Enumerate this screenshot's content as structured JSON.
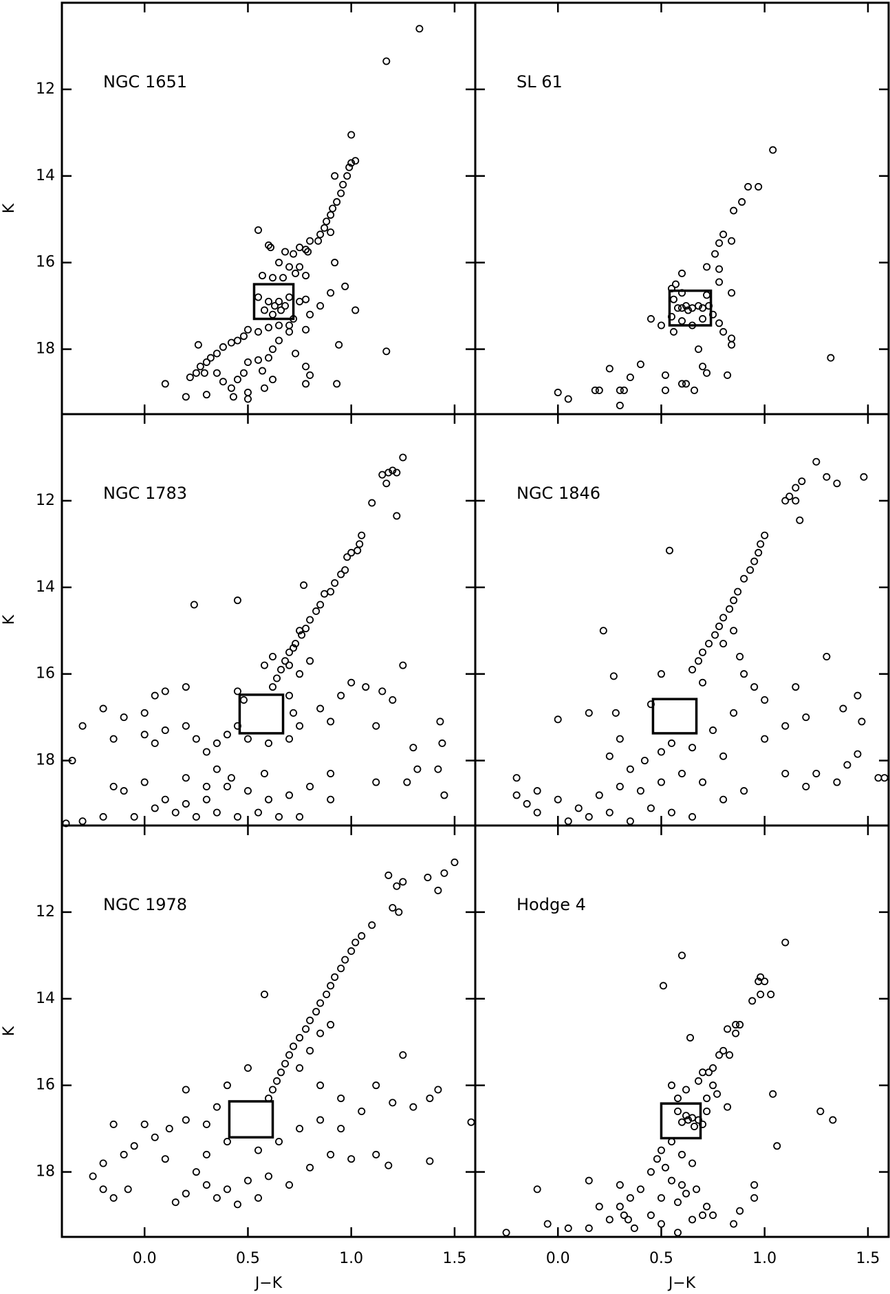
{
  "chart_data": [
    {
      "type": "scatter",
      "title": "NGC 1651",
      "marker_color": "#000000",
      "x": [
        1.33,
        1.17,
        1.0,
        1.02,
        1.0,
        0.99,
        0.98,
        0.92,
        0.96,
        0.95,
        0.93,
        0.91,
        0.9,
        0.88,
        0.87,
        0.9,
        0.85,
        0.84,
        0.8,
        0.78,
        0.79,
        0.75,
        0.72,
        0.68,
        0.55,
        0.6,
        0.61,
        0.65,
        0.7,
        0.75,
        0.78,
        0.73,
        0.67,
        0.62,
        0.57,
        0.92,
        0.9,
        0.97,
        1.02,
        0.55,
        0.6,
        0.63,
        0.65,
        0.68,
        0.7,
        0.66,
        0.62,
        0.58,
        0.72,
        0.75,
        0.78,
        0.8,
        0.78,
        0.7,
        0.65,
        0.6,
        0.55,
        0.5,
        0.48,
        0.45,
        0.42,
        0.38,
        0.35,
        0.32,
        0.3,
        0.27,
        0.25,
        0.22,
        0.26,
        0.29,
        0.35,
        0.38,
        0.42,
        0.45,
        0.48,
        0.5,
        0.55,
        0.57,
        0.6,
        0.62,
        0.65,
        0.7,
        0.73,
        0.78,
        0.8,
        0.78,
        0.62,
        0.58,
        0.5,
        0.5,
        0.43,
        0.3,
        0.2,
        0.1,
        0.93,
        0.94,
        1.17,
        0.85
      ],
      "values": [
        10.6,
        11.35,
        13.05,
        13.65,
        13.7,
        13.8,
        14.0,
        14.0,
        14.2,
        14.4,
        14.6,
        14.75,
        14.9,
        15.05,
        15.2,
        15.3,
        15.35,
        15.5,
        15.5,
        15.7,
        15.75,
        15.65,
        15.8,
        15.75,
        15.25,
        15.6,
        15.65,
        16.0,
        16.1,
        16.1,
        16.3,
        16.25,
        16.35,
        16.35,
        16.3,
        16.0,
        16.7,
        16.55,
        17.1,
        16.8,
        16.9,
        17.0,
        16.9,
        17.0,
        16.8,
        17.1,
        17.2,
        17.1,
        17.3,
        16.9,
        16.85,
        17.2,
        17.55,
        17.45,
        17.45,
        17.5,
        17.6,
        17.55,
        17.7,
        17.8,
        17.85,
        17.95,
        18.1,
        18.2,
        18.3,
        18.4,
        18.55,
        18.65,
        17.9,
        18.55,
        18.55,
        18.75,
        18.9,
        18.7,
        18.55,
        18.3,
        18.25,
        18.5,
        18.2,
        18.0,
        17.8,
        17.6,
        18.1,
        18.4,
        18.6,
        18.8,
        18.7,
        18.9,
        19.0,
        19.15,
        19.1,
        19.05,
        19.1,
        18.8,
        18.8,
        17.9,
        18.05,
        17.0
      ],
      "box": {
        "x": [
          0.53,
          0.72
        ],
        "y": [
          16.5,
          17.3
        ]
      },
      "xlim": [
        -0.4,
        1.6
      ],
      "ylim": [
        19.5,
        10.0
      ],
      "xticks": [
        0,
        0.5,
        1,
        1.5
      ],
      "xtick_labels": false,
      "yticks": [
        12,
        14,
        16,
        18
      ],
      "ytick_labels": true,
      "ylabel": "K"
    },
    {
      "type": "scatter",
      "title": "SL 61",
      "marker_color": "#000000",
      "x": [
        1.04,
        0.97,
        0.92,
        0.89,
        0.85,
        0.84,
        0.8,
        0.78,
        0.76,
        0.72,
        0.78,
        0.78,
        0.6,
        0.57,
        0.55,
        0.6,
        0.84,
        0.72,
        0.56,
        0.6,
        0.62,
        0.65,
        0.68,
        0.7,
        0.73,
        0.63,
        0.58,
        0.75,
        0.55,
        0.6,
        0.65,
        0.7,
        0.78,
        0.8,
        0.84,
        0.84,
        0.56,
        0.45,
        0.5,
        0.68,
        0.7,
        0.72,
        0.82,
        0.62,
        0.6,
        0.66,
        0.52,
        0.52,
        0.4,
        0.35,
        0.25,
        0.32,
        0.3,
        0.3,
        0.2,
        0.18,
        0.0,
        0.05,
        1.32
      ],
      "values": [
        13.4,
        14.25,
        14.25,
        14.6,
        14.8,
        15.5,
        15.35,
        15.55,
        15.8,
        16.1,
        16.15,
        16.45,
        16.25,
        16.5,
        16.6,
        16.7,
        16.7,
        16.75,
        16.85,
        17.05,
        17.0,
        17.05,
        17.0,
        17.05,
        17.0,
        17.1,
        17.05,
        17.2,
        17.25,
        17.35,
        17.45,
        17.3,
        17.4,
        17.6,
        17.75,
        17.9,
        17.6,
        17.3,
        17.45,
        18.0,
        18.4,
        18.55,
        18.6,
        18.8,
        18.8,
        18.95,
        18.6,
        18.95,
        18.35,
        18.65,
        18.45,
        18.95,
        18.95,
        19.3,
        18.95,
        18.95,
        19.0,
        19.15,
        18.2
      ],
      "box": {
        "x": [
          0.54,
          0.74
        ],
        "y": [
          16.65,
          17.45
        ]
      },
      "xlim": [
        -0.4,
        1.6
      ],
      "ylim": [
        19.5,
        10.0
      ],
      "xticks": [
        0,
        0.5,
        1,
        1.5
      ],
      "xtick_labels": false,
      "yticks": [
        12,
        14,
        16,
        18
      ],
      "ytick_labels": false
    },
    {
      "type": "scatter",
      "title": "NGC 1783",
      "marker_color": "#000000",
      "x": [
        1.25,
        1.2,
        1.22,
        1.18,
        1.15,
        1.17,
        1.22,
        1.1,
        1.05,
        1.04,
        1.03,
        1.0,
        0.98,
        0.97,
        0.95,
        0.92,
        0.9,
        0.87,
        0.85,
        0.83,
        0.8,
        0.78,
        0.76,
        0.73,
        0.7,
        0.68,
        0.66,
        0.64,
        0.62,
        0.75,
        0.72,
        0.7,
        0.75,
        0.8,
        0.62,
        0.58,
        0.77,
        0.45,
        0.24,
        0.45,
        0.48,
        0.7,
        0.72,
        0.75,
        0.7,
        0.6,
        0.5,
        0.45,
        0.4,
        0.35,
        0.3,
        0.85,
        0.9,
        0.95,
        1.0,
        1.07,
        1.15,
        1.2,
        1.25,
        1.12,
        0.2,
        0.1,
        0.05,
        0.0,
        -0.1,
        -0.2,
        -0.3,
        -0.35,
        0.0,
        0.1,
        0.2,
        -0.15,
        0.05,
        0.25,
        1.43,
        1.44,
        1.3,
        1.32,
        1.42,
        1.45,
        1.27,
        1.12,
        0.9,
        0.0,
        -0.1,
        0.1,
        0.2,
        0.3,
        0.4,
        0.5,
        0.6,
        0.7,
        0.8,
        0.15,
        0.25,
        0.35,
        0.45,
        0.55,
        0.65,
        -0.05,
        -0.2,
        -0.3,
        -0.38,
        0.05,
        0.3,
        0.42,
        0.58,
        0.35,
        0.2,
        -0.15,
        0.9,
        0.75
      ],
      "values": [
        11.0,
        11.3,
        11.35,
        11.35,
        11.4,
        11.6,
        12.35,
        12.05,
        12.8,
        13.0,
        13.15,
        13.2,
        13.3,
        13.6,
        13.7,
        13.9,
        14.1,
        14.15,
        14.4,
        14.55,
        14.75,
        14.95,
        15.1,
        15.3,
        15.5,
        15.7,
        15.9,
        16.1,
        16.3,
        15.0,
        15.4,
        15.8,
        16.0,
        15.7,
        15.6,
        15.8,
        13.95,
        14.3,
        14.4,
        16.4,
        16.6,
        16.5,
        16.9,
        17.2,
        17.5,
        17.6,
        17.5,
        17.2,
        17.4,
        17.6,
        17.8,
        16.8,
        17.1,
        16.5,
        16.2,
        16.3,
        16.4,
        16.6,
        15.8,
        17.2,
        16.3,
        16.4,
        16.5,
        16.9,
        17.0,
        16.8,
        17.2,
        18.0,
        17.4,
        17.3,
        17.2,
        17.5,
        17.6,
        17.5,
        17.1,
        17.6,
        17.7,
        18.2,
        18.2,
        18.8,
        18.5,
        18.5,
        18.3,
        18.5,
        18.7,
        18.9,
        19.0,
        18.9,
        18.6,
        18.7,
        18.9,
        18.8,
        18.6,
        19.2,
        19.3,
        19.2,
        19.3,
        19.2,
        19.3,
        19.3,
        19.3,
        19.4,
        19.45,
        19.1,
        18.6,
        18.4,
        18.3,
        18.2,
        18.4,
        18.6,
        18.9,
        19.3
      ],
      "box": {
        "x": [
          0.46,
          0.67
        ],
        "y": [
          16.48,
          17.37
        ]
      },
      "xlim": [
        -0.4,
        1.6
      ],
      "ylim": [
        19.5,
        10.0
      ],
      "xticks": [
        0,
        0.5,
        1,
        1.5
      ],
      "xtick_labels": false,
      "yticks": [
        12,
        14,
        16,
        18
      ],
      "ytick_labels": true,
      "ylabel": "K"
    },
    {
      "type": "scatter",
      "title": "NGC 1846",
      "marker_color": "#000000",
      "x": [
        1.48,
        1.35,
        1.3,
        1.25,
        1.18,
        1.15,
        1.12,
        1.1,
        1.15,
        1.17,
        1.0,
        0.98,
        0.97,
        0.95,
        0.93,
        0.9,
        0.87,
        0.85,
        0.83,
        0.8,
        0.78,
        0.76,
        0.73,
        0.7,
        0.68,
        0.65,
        0.8,
        0.85,
        0.88,
        0.9,
        0.95,
        1.0,
        0.7,
        0.54,
        0.22,
        0.27,
        0.5,
        0.45,
        0.55,
        0.65,
        0.75,
        0.8,
        0.85,
        1.0,
        1.1,
        1.2,
        1.15,
        1.3,
        1.45,
        1.38,
        1.47,
        1.45,
        1.4,
        1.35,
        1.25,
        1.2,
        1.1,
        1.55,
        1.58,
        0.0,
        0.15,
        0.28,
        -0.2,
        -0.1,
        0.0,
        0.1,
        0.2,
        0.3,
        0.4,
        0.5,
        0.6,
        0.7,
        0.8,
        0.9,
        0.15,
        0.25,
        0.35,
        0.45,
        0.55,
        0.65,
        -0.15,
        0.05,
        0.35,
        0.42,
        0.5,
        0.3,
        0.25,
        -0.2,
        -0.1
      ],
      "values": [
        11.45,
        11.6,
        11.45,
        11.1,
        11.55,
        11.7,
        11.9,
        12.0,
        12.0,
        12.45,
        12.8,
        13.0,
        13.2,
        13.4,
        13.6,
        13.8,
        14.1,
        14.3,
        14.5,
        14.7,
        14.9,
        15.1,
        15.3,
        15.5,
        15.7,
        15.9,
        15.3,
        15.0,
        15.6,
        16.0,
        16.3,
        16.6,
        16.2,
        13.15,
        15.0,
        16.05,
        16.0,
        16.7,
        17.6,
        17.7,
        17.3,
        17.9,
        16.9,
        17.5,
        17.2,
        17.0,
        16.3,
        15.6,
        16.5,
        16.8,
        17.1,
        17.85,
        18.1,
        18.5,
        18.3,
        18.6,
        18.3,
        18.4,
        18.4,
        17.05,
        16.9,
        16.9,
        18.4,
        18.7,
        18.9,
        19.1,
        18.8,
        18.6,
        18.7,
        18.5,
        18.3,
        18.5,
        18.9,
        18.7,
        19.3,
        19.2,
        19.4,
        19.1,
        19.2,
        19.3,
        19.0,
        19.4,
        18.2,
        18.0,
        17.8,
        17.5,
        17.9,
        18.8,
        19.2
      ],
      "box": {
        "x": [
          0.46,
          0.67
        ],
        "y": [
          16.58,
          17.37
        ]
      },
      "xlim": [
        -0.4,
        1.6
      ],
      "ylim": [
        19.5,
        10.0
      ],
      "xticks": [
        0,
        0.5,
        1,
        1.5
      ],
      "xtick_labels": false,
      "yticks": [
        12,
        14,
        16,
        18
      ],
      "ytick_labels": false
    },
    {
      "type": "scatter",
      "title": "NGC 1978",
      "marker_color": "#000000",
      "x": [
        1.5,
        1.45,
        1.42,
        1.37,
        1.25,
        1.18,
        1.22,
        1.2,
        1.23,
        1.1,
        1.05,
        1.02,
        1.0,
        0.97,
        0.95,
        0.92,
        0.9,
        0.88,
        0.85,
        0.83,
        0.8,
        0.78,
        0.75,
        0.72,
        0.7,
        0.68,
        0.66,
        0.64,
        0.62,
        0.6,
        0.9,
        0.85,
        0.8,
        0.75,
        0.85,
        0.95,
        1.05,
        1.12,
        1.2,
        1.25,
        1.3,
        1.38,
        1.42,
        1.58,
        0.58,
        0.5,
        0.4,
        0.35,
        0.3,
        0.2,
        0.12,
        0.05,
        0.0,
        -0.05,
        -0.1,
        -0.15,
        -0.2,
        -0.25,
        -0.2,
        -0.15,
        -0.08,
        0.15,
        0.2,
        0.3,
        0.4,
        0.5,
        0.6,
        0.7,
        0.8,
        0.9,
        1.0,
        1.12,
        1.18,
        1.38,
        0.55,
        0.45,
        0.35,
        0.25,
        0.3,
        0.4,
        0.55,
        0.65,
        0.75,
        0.85,
        0.95,
        0.2,
        0.1
      ],
      "values": [
        10.85,
        11.1,
        11.5,
        11.2,
        11.3,
        11.15,
        11.4,
        11.9,
        12.0,
        12.3,
        12.55,
        12.7,
        12.9,
        13.1,
        13.3,
        13.5,
        13.7,
        13.9,
        14.1,
        14.3,
        14.5,
        14.7,
        14.9,
        15.1,
        15.3,
        15.5,
        15.7,
        15.9,
        16.1,
        16.3,
        14.6,
        14.8,
        15.2,
        15.6,
        16.0,
        16.3,
        16.6,
        16.0,
        16.4,
        15.3,
        16.5,
        16.3,
        16.1,
        16.85,
        13.9,
        15.6,
        16.0,
        16.5,
        16.9,
        16.8,
        17.0,
        17.2,
        16.9,
        17.4,
        17.6,
        16.9,
        17.8,
        18.1,
        18.4,
        18.6,
        18.4,
        18.7,
        18.5,
        18.3,
        18.4,
        18.2,
        18.1,
        18.3,
        17.9,
        17.6,
        17.7,
        17.6,
        17.85,
        17.75,
        18.6,
        18.75,
        18.6,
        18.0,
        17.6,
        17.3,
        17.5,
        17.3,
        17.0,
        16.8,
        17.0,
        16.1,
        17.7
      ],
      "box": {
        "x": [
          0.41,
          0.62
        ],
        "y": [
          16.37,
          17.2
        ]
      },
      "xlim": [
        -0.4,
        1.6
      ],
      "ylim": [
        19.5,
        10.0
      ],
      "xticks": [
        {
          "value": 0,
          "label": "0.0"
        },
        0.5,
        {
          "value": 1,
          "label": "1.0"
        },
        1.5
      ],
      "xtick_labels": true,
      "yticks": [
        12,
        14,
        16,
        18
      ],
      "ytick_labels": true,
      "ylabel": "K",
      "xlabel": "J−K"
    },
    {
      "type": "scatter",
      "title": "Hodge 4",
      "marker_color": "#000000",
      "x": [
        1.1,
        0.98,
        1.0,
        0.97,
        1.03,
        0.98,
        0.6,
        0.51,
        0.94,
        0.88,
        0.86,
        0.86,
        0.82,
        0.64,
        0.78,
        0.8,
        0.83,
        0.75,
        0.73,
        0.7,
        0.68,
        0.75,
        0.77,
        0.72,
        0.62,
        0.58,
        0.55,
        0.58,
        0.62,
        0.65,
        0.68,
        0.6,
        0.66,
        0.63,
        0.7,
        0.72,
        0.82,
        1.04,
        1.06,
        1.27,
        1.33,
        0.55,
        0.5,
        0.48,
        0.52,
        0.6,
        0.65,
        0.45,
        0.55,
        0.6,
        0.62,
        0.58,
        0.5,
        0.4,
        0.35,
        0.3,
        0.3,
        0.32,
        0.34,
        0.37,
        0.25,
        0.15,
        0.15,
        0.2,
        0.45,
        0.5,
        0.58,
        0.65,
        0.7,
        0.72,
        0.67,
        0.75,
        0.85,
        0.88,
        0.95,
        0.95,
        -0.1,
        -0.05,
        0.05,
        -0.25
      ],
      "values": [
        12.7,
        13.5,
        13.6,
        13.6,
        13.9,
        13.9,
        13.0,
        13.7,
        14.05,
        14.6,
        14.6,
        14.8,
        14.7,
        14.9,
        15.3,
        15.2,
        15.3,
        15.6,
        15.7,
        15.7,
        15.9,
        16.0,
        16.2,
        16.3,
        16.1,
        16.3,
        16.0,
        16.6,
        16.7,
        16.75,
        16.8,
        16.85,
        16.95,
        16.8,
        16.9,
        16.6,
        16.5,
        16.2,
        17.4,
        16.6,
        16.8,
        17.3,
        17.5,
        17.7,
        17.9,
        17.6,
        17.8,
        18.0,
        18.2,
        18.3,
        18.5,
        18.7,
        18.6,
        18.4,
        18.6,
        18.3,
        18.8,
        19.0,
        19.1,
        19.3,
        19.1,
        19.3,
        18.2,
        18.8,
        19.0,
        19.2,
        19.4,
        19.1,
        19.0,
        18.8,
        18.4,
        19.0,
        19.2,
        18.9,
        18.3,
        18.6,
        18.4,
        19.2,
        19.3,
        19.4
      ],
      "box": {
        "x": [
          0.5,
          0.69
        ],
        "y": [
          16.42,
          17.22
        ]
      },
      "xlim": [
        -0.4,
        1.6
      ],
      "ylim": [
        19.5,
        10.0
      ],
      "xticks": [
        {
          "value": 0,
          "label": "0.0"
        },
        0.5,
        {
          "value": 1,
          "label": "1.0"
        },
        1.5
      ],
      "xtick_labels": true,
      "yticks": [
        12,
        14,
        16,
        18
      ],
      "ytick_labels": false,
      "xlabel": "J−K"
    }
  ]
}
